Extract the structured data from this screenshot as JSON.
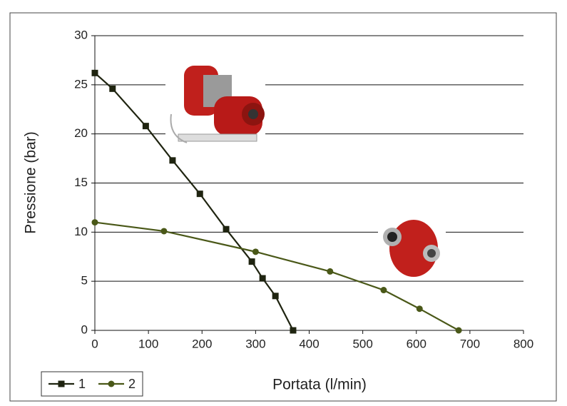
{
  "chart_data": {
    "type": "line",
    "x_label": "Portata (l/min)",
    "y_label": "Pressione (bar)",
    "xlim": [
      0,
      800
    ],
    "xticks": [
      0,
      100,
      200,
      300,
      400,
      500,
      600,
      700,
      800
    ],
    "ylim": [
      0,
      30
    ],
    "yticks": [
      0,
      5,
      10,
      15,
      20,
      25,
      30
    ],
    "grid": true,
    "legend": "bottom-left",
    "series": [
      {
        "name": "1",
        "color": "#1f2410",
        "marker": "square",
        "x": [
          0,
          33,
          95,
          145,
          196,
          245,
          293,
          313,
          337,
          370
        ],
        "values": [
          26.2,
          24.6,
          20.8,
          17.3,
          13.9,
          10.3,
          7.0,
          5.3,
          3.5,
          0
        ]
      },
      {
        "name": "2",
        "color": "#4a5818",
        "marker": "circle",
        "x": [
          0,
          129,
          300,
          439,
          539,
          606,
          679
        ],
        "values": [
          11.0,
          10.1,
          8.0,
          6.0,
          4.1,
          2.2,
          0
        ]
      }
    ]
  }
}
